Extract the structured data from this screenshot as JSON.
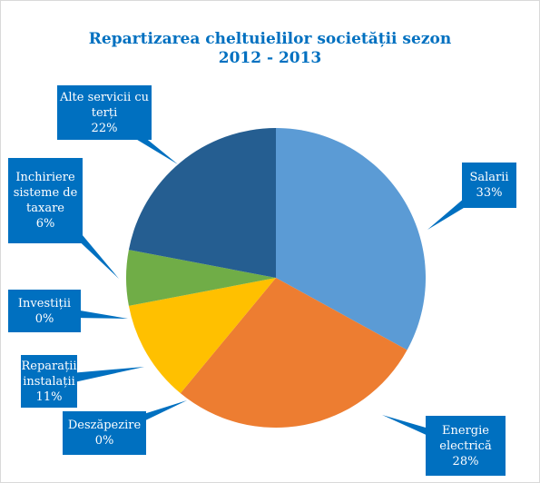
{
  "chart_data": {
    "type": "pie",
    "title": [
      "Repartizarea cheltuielilor societății sezon",
      "2012 - 2013"
    ],
    "categories": [
      "Salarii",
      "Energie electrică",
      "Deszăpezire",
      "Reparații instalații",
      "Investiții",
      "Inchiriere sisteme de taxare",
      "Alte servicii cu terți"
    ],
    "values": [
      33,
      28,
      0,
      11,
      0,
      6,
      22
    ],
    "value_labels": [
      "33%",
      "28%",
      "0%",
      "11%",
      "0%",
      "6%",
      "22%"
    ],
    "colors": [
      "#5b9bd5",
      "#ed7d31",
      "#a5a5a5",
      "#ffc000",
      "#4472c4",
      "#70ad47",
      "#255e91"
    ],
    "label_color": "#0070c0"
  }
}
